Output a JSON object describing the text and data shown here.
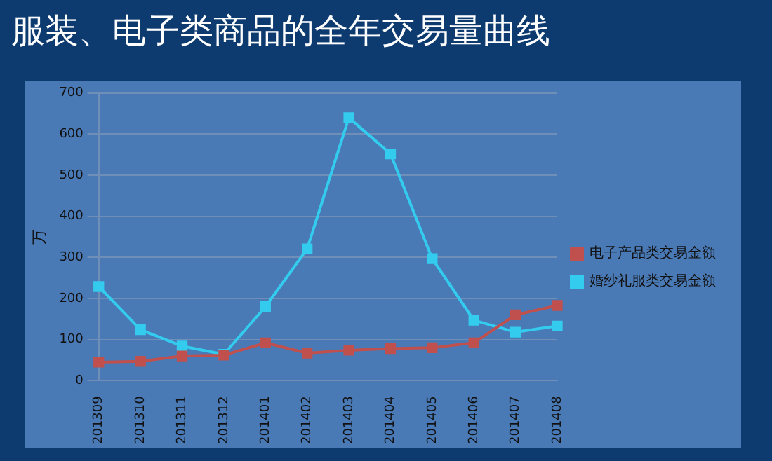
{
  "chart_data": {
    "type": "line",
    "title": "服装、电子类商品的全年交易量曲线",
    "ylabel": "万",
    "categories": [
      "201309",
      "201310",
      "201311",
      "201312",
      "201401",
      "201402",
      "201403",
      "201404",
      "201405",
      "201406",
      "201407",
      "201408"
    ],
    "series": [
      {
        "name": "电子产品类交易金额",
        "color": "#c0504d",
        "values": [
          45,
          47,
          60,
          62,
          92,
          67,
          74,
          78,
          80,
          92,
          160,
          183
        ]
      },
      {
        "name": "婚纱礼服类交易金额",
        "color": "#33ccee",
        "values": [
          229,
          124,
          84,
          64,
          180,
          321,
          640,
          552,
          297,
          147,
          118,
          133
        ]
      }
    ],
    "ylim": [
      0,
      700
    ],
    "yticks": [
      0,
      100,
      200,
      300,
      400,
      500,
      600,
      700
    ],
    "grid": "y",
    "legend": "right",
    "marker": "square",
    "line_style": "solid"
  }
}
